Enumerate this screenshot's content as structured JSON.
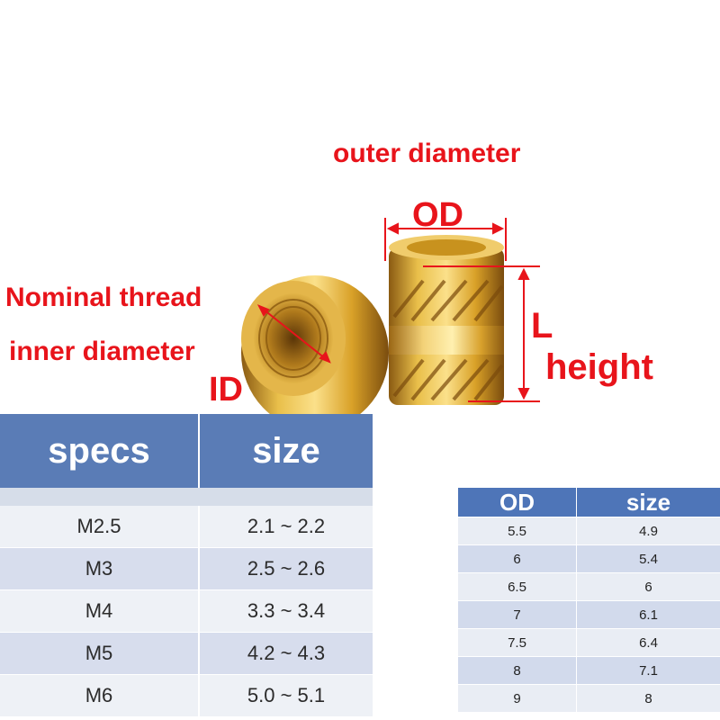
{
  "labels": {
    "outer_diameter": "outer diameter",
    "od": "OD",
    "nominal_thread": "Nominal thread",
    "inner_diameter": "inner diameter",
    "id": "ID",
    "l": "L",
    "height": "height"
  },
  "specs_table": {
    "headers": [
      "specs",
      "size"
    ],
    "rows": [
      [
        "M2.5",
        "2.1 ~ 2.2"
      ],
      [
        "M3",
        "2.5 ~ 2.6"
      ],
      [
        "M4",
        "3.3 ~ 3.4"
      ],
      [
        "M5",
        "4.2 ~ 4.3"
      ],
      [
        "M6",
        "5.0 ~ 5.1"
      ]
    ]
  },
  "od_table": {
    "headers": [
      "OD",
      "size"
    ],
    "rows": [
      [
        "5.5",
        "4.9"
      ],
      [
        "6",
        "5.4"
      ],
      [
        "6.5",
        "6"
      ],
      [
        "7",
        "6.1"
      ],
      [
        "7.5",
        "6.4"
      ],
      [
        "8",
        "7.1"
      ],
      [
        "9",
        "8"
      ]
    ]
  },
  "colors": {
    "annotation_red": "#e8141b",
    "header_blue": "#5a7cb6",
    "brass": "#d9a930"
  }
}
